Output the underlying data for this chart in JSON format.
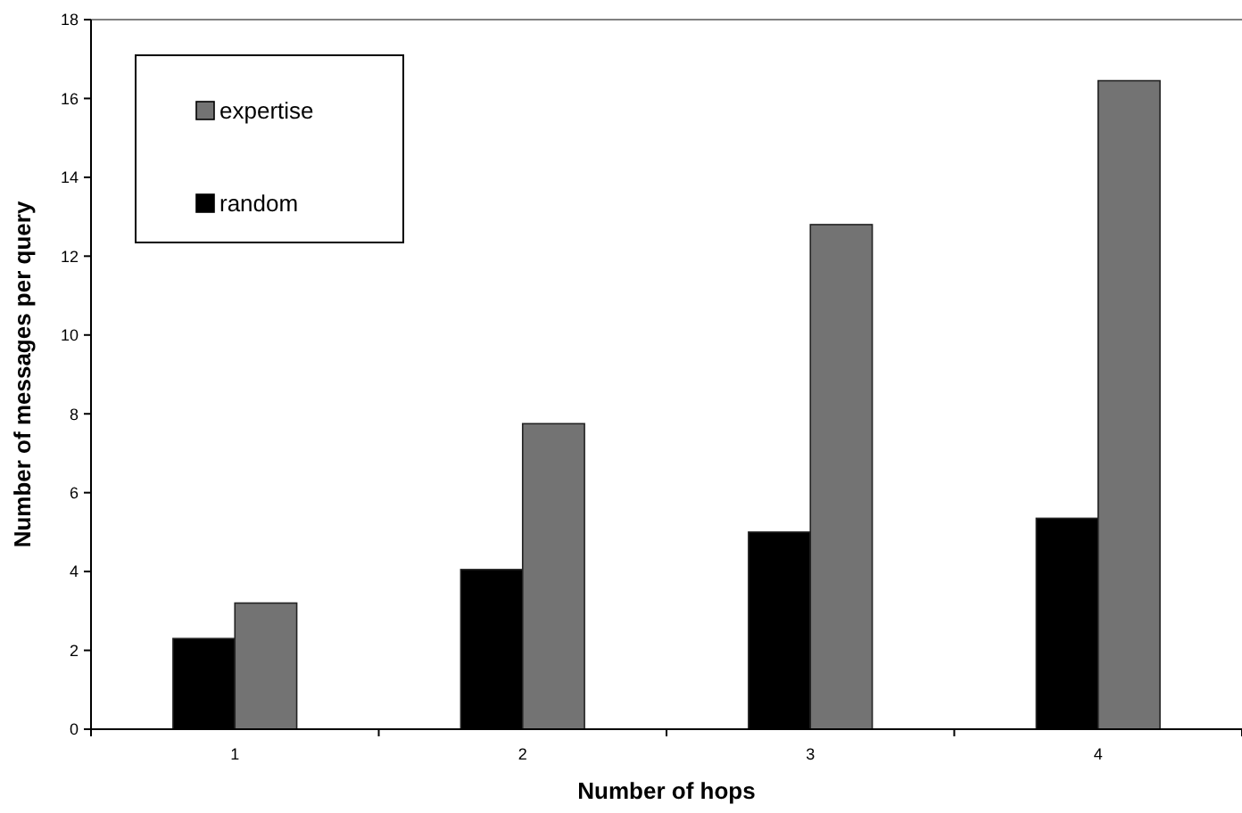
{
  "chart_data": {
    "type": "bar",
    "xlabel": "Number of hops",
    "ylabel": "Number of messages per query",
    "categories": [
      "1",
      "2",
      "3",
      "4"
    ],
    "series": [
      {
        "name": "random",
        "color": "#000000",
        "values": [
          2.3,
          4.05,
          5.0,
          5.35
        ]
      },
      {
        "name": "expertise",
        "color": "#737373",
        "values": [
          3.2,
          7.75,
          12.8,
          16.45
        ]
      }
    ],
    "ylim": [
      0,
      18
    ],
    "yticks": [
      0,
      2,
      4,
      6,
      8,
      10,
      12,
      14,
      16,
      18
    ],
    "grid": false,
    "legend": "top left"
  }
}
